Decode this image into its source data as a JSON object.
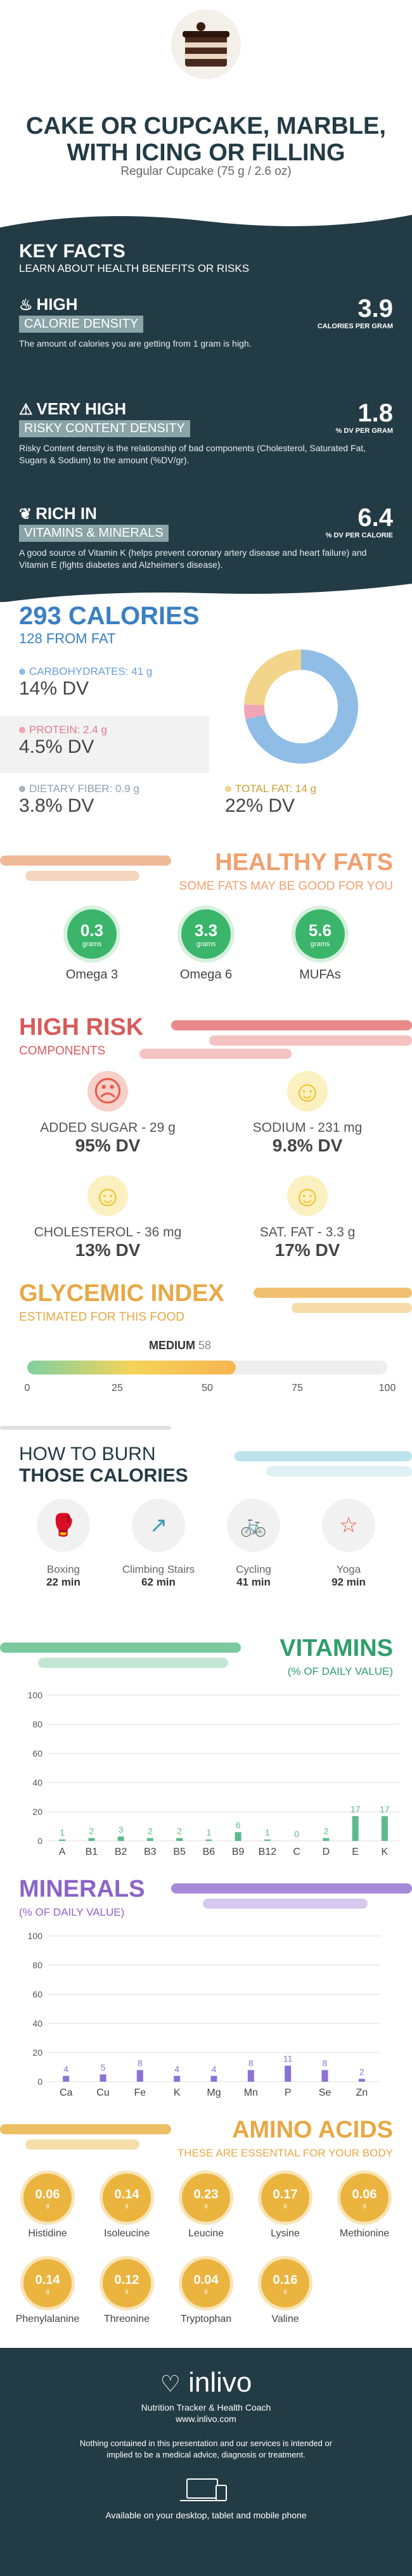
{
  "header": {
    "title": "CAKE OR CUPCAKE, MARBLE, WITH ICING OR FILLING",
    "serving": "Regular Cupcake (75 g / 2.6 oz)"
  },
  "key_facts": {
    "title": "KEY FACTS",
    "subtitle": "LEARN ABOUT HEALTH BENEFITS OR RISKS",
    "items": [
      {
        "level": "HIGH",
        "tag": "CALORIE DENSITY",
        "value": "3.9",
        "unit": "CALORIES PER GRAM",
        "desc": "The amount of calories you are getting from 1 gram is high.",
        "icon": "flame-icon"
      },
      {
        "level": "VERY HIGH",
        "tag": "RISKY CONTENT DENSITY",
        "value": "1.8",
        "unit": "% DV PER GRAM",
        "desc": "Risky Content density is the relationship of bad components (Cholesterol, Saturated Fat, Sugars & Sodium) to the amount (%DV/gr).",
        "icon": "warning-icon"
      },
      {
        "level": "RICH IN",
        "tag": "VITAMINS & MINERALS",
        "value": "6.4",
        "unit": "% DV PER CALORIE",
        "desc": "A good source of Vitamin K (helps prevent coronary artery disease and heart failure) and Vitamin E (fights diabetes and Alzheimer's disease).",
        "icon": "leaf-icon"
      }
    ]
  },
  "calories": {
    "title": "293 CALORIES",
    "from_fat": "128 FROM FAT",
    "carbs_label": "CARBOHYDRATES: 41 g",
    "carbs_dv": "14% DV",
    "protein_label": "PROTEIN: 2.4 g",
    "protein_dv": "4.5% DV",
    "fiber_label": "DIETARY FIBER: 0.9 g",
    "fiber_dv": "3.8% DV",
    "fat_label": "TOTAL FAT: 14 g",
    "fat_dv": "22% DV",
    "colors": {
      "carbs": "#8fbde6",
      "protein": "#f0a5b5",
      "fiber": "#a8b0b8",
      "fat": "#f2d48a"
    }
  },
  "chart_data": [
    {
      "type": "pie",
      "values": [
        41,
        2.4,
        14
      ],
      "labels": [
        "CARBOHYDRATES",
        "PROTEIN",
        "TOTAL FAT"
      ]
    },
    {
      "type": "bar",
      "title": "VITAMINS",
      "subtitle": "(% OF DAILY VALUE)",
      "categories": [
        "A",
        "B1",
        "B2",
        "B3",
        "B5",
        "B6",
        "B9",
        "B12",
        "C",
        "D",
        "E",
        "K"
      ],
      "values": [
        1,
        2,
        3,
        2,
        2,
        1,
        6,
        1,
        0,
        2,
        17,
        17
      ],
      "ylim": [
        0,
        100
      ],
      "yticks": [
        0,
        20,
        40,
        60,
        80,
        100
      ]
    },
    {
      "type": "bar",
      "title": "MINERALS",
      "subtitle": "(% OF DAILY VALUE)",
      "categories": [
        "Ca",
        "Cu",
        "Fe",
        "K",
        "Mg",
        "Mn",
        "P",
        "Se",
        "Zn"
      ],
      "values": [
        4,
        5,
        8,
        4,
        4,
        8,
        11,
        8,
        2
      ],
      "ylim": [
        0,
        100
      ],
      "yticks": [
        0,
        20,
        40,
        60,
        80,
        100
      ]
    }
  ],
  "healthy_fats": {
    "title": "HEALTHY FATS",
    "subtitle": "SOME FATS MAY BE GOOD FOR YOU",
    "items": [
      {
        "value": "0.3",
        "unit": "grams",
        "label": "Omega 3"
      },
      {
        "value": "3.3",
        "unit": "grams",
        "label": "Omega 6"
      },
      {
        "value": "5.6",
        "unit": "grams",
        "label": "MUFAs"
      }
    ]
  },
  "high_risk": {
    "title": "HIGH RISK",
    "subtitle": "COMPONENTS",
    "items": [
      {
        "label": "ADDED SUGAR - 29 g",
        "dv": "95% DV",
        "mood": "sad"
      },
      {
        "label": "SODIUM - 231 mg",
        "dv": "9.8% DV",
        "mood": "happy"
      },
      {
        "label": "CHOLESTEROL - 36 mg",
        "dv": "13% DV",
        "mood": "happy"
      },
      {
        "label": "SAT. FAT - 3.3 g",
        "dv": "17% DV",
        "mood": "happy"
      }
    ]
  },
  "glycemic": {
    "title": "GLYCEMIC INDEX",
    "subtitle": "ESTIMATED FOR THIS FOOD",
    "level": "MEDIUM",
    "value": 58,
    "value_text": "58",
    "ticks": [
      "0",
      "25",
      "50",
      "75",
      "100"
    ]
  },
  "burn": {
    "title1": "HOW TO BURN",
    "title2": "THOSE CALORIES",
    "items": [
      {
        "label": "Boxing",
        "time": "22 min"
      },
      {
        "label": "Climbing Stairs",
        "time": "62 min"
      },
      {
        "label": "Cycling",
        "time": "41 min"
      },
      {
        "label": "Yoga",
        "time": "92 min"
      }
    ]
  },
  "amino": {
    "title": "AMINO ACIDS",
    "subtitle": "THESE ARE ESSENTIAL FOR YOUR BODY",
    "unit": "g",
    "items": [
      {
        "value": "0.06",
        "label": "Histidine"
      },
      {
        "value": "0.14",
        "label": "Isoleucine"
      },
      {
        "value": "0.23",
        "label": "Leucine"
      },
      {
        "value": "0.17",
        "label": "Lysine"
      },
      {
        "value": "0.06",
        "label": "Methionine"
      },
      {
        "value": "0.14",
        "label": "Phenylalanine"
      },
      {
        "value": "0.12",
        "label": "Threonine"
      },
      {
        "value": "0.04",
        "label": "Tryptophan"
      },
      {
        "value": "0.16",
        "label": "Valine"
      }
    ]
  },
  "footer": {
    "brand": "inlivo",
    "tagline": "Nutrition Tracker & Health Coach",
    "url": "www.inlivo.com",
    "disclaimer": "Nothing contained in this presentation and our services is intended or implied to be a medical advice, diagnosis or treatment.",
    "available": "Available on your desktop, tablet and mobile phone"
  }
}
